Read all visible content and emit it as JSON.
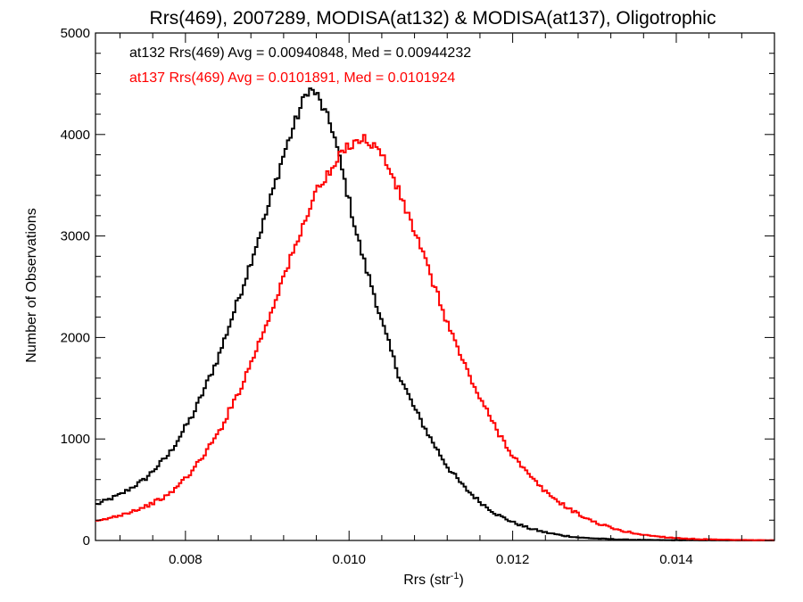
{
  "chart_data": {
    "type": "line",
    "style": "histogram-step",
    "title": "Rrs(469), 2007289, MODISA(at132) & MODISA(at137), Oligotrophic",
    "xlabel": "Rrs (str",
    "xlabel_sup": "-1",
    "xlabel_close": ")",
    "ylabel": "Number of Observations",
    "xlim": [
      0.0069,
      0.0152
    ],
    "ylim": [
      0,
      5000
    ],
    "xticks": [
      0.008,
      0.01,
      0.012,
      0.014
    ],
    "xtick_labels": [
      "0.008",
      "0.010",
      "0.012",
      "0.014"
    ],
    "yticks": [
      0,
      1000,
      2000,
      3000,
      4000,
      5000
    ],
    "ytick_labels": [
      "0",
      "1000",
      "2000",
      "3000",
      "4000",
      "5000"
    ],
    "grid": false,
    "annotations": [
      {
        "text": "at132 Rrs(469) Avg = 0.00940848, Med = 0.00944232",
        "color": "#000000"
      },
      {
        "text": "at137 Rrs(469) Avg = 0.0101891, Med = 0.0101924",
        "color": "#ff0000"
      }
    ],
    "x": [
      0.0069,
      0.0072,
      0.0075,
      0.0078,
      0.0081,
      0.0084,
      0.0087,
      0.009,
      0.0092,
      0.0094,
      0.0095,
      0.0096,
      0.0098,
      0.0099,
      0.01,
      0.0101,
      0.0102,
      0.0103,
      0.0104,
      0.0105,
      0.0106,
      0.0108,
      0.011,
      0.0112,
      0.0114,
      0.0116,
      0.0118,
      0.012,
      0.0122,
      0.0124,
      0.0126,
      0.0128,
      0.013,
      0.0133,
      0.0136,
      0.0139,
      0.0142,
      0.0145,
      0.0148,
      0.0152
    ],
    "series": [
      {
        "name": "at132",
        "color": "#000000",
        "values": [
          350,
          450,
          600,
          850,
          1250,
          1800,
          2500,
          3250,
          3800,
          4250,
          4450,
          4400,
          4050,
          3700,
          3350,
          3000,
          2700,
          2450,
          2150,
          1900,
          1650,
          1300,
          1000,
          730,
          530,
          380,
          260,
          180,
          120,
          80,
          50,
          30,
          20,
          10,
          5,
          3,
          2,
          1,
          0,
          0
        ]
      },
      {
        "name": "at137",
        "color": "#ff0000",
        "values": [
          180,
          250,
          330,
          450,
          700,
          1050,
          1550,
          2150,
          2600,
          3000,
          3250,
          3450,
          3650,
          3800,
          3900,
          3950,
          3950,
          3900,
          3800,
          3650,
          3450,
          3050,
          2600,
          2150,
          1750,
          1400,
          1100,
          840,
          640,
          480,
          360,
          260,
          180,
          100,
          55,
          30,
          15,
          8,
          4,
          2
        ]
      }
    ]
  }
}
